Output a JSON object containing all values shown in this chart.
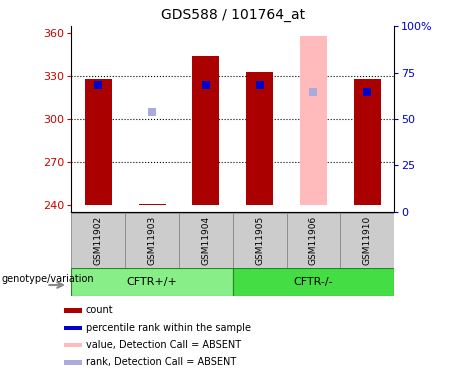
{
  "title": "GDS588 / 101764_at",
  "samples": [
    "GSM11902",
    "GSM11903",
    "GSM11904",
    "GSM11905",
    "GSM11906",
    "GSM11910"
  ],
  "ylim_left": [
    235,
    365
  ],
  "yticks_left": [
    240,
    270,
    300,
    330,
    360
  ],
  "yticks_right": [
    0,
    25,
    50,
    75,
    100
  ],
  "bar_bottom": 240,
  "bar_color": "#aa0000",
  "bar_color_absent": "#ffbbbb",
  "rank_color": "#0000cc",
  "rank_color_absent": "#aaaadd",
  "bar_width": 0.5,
  "rank_dot_size": 30,
  "counts": [
    328,
    null,
    344,
    333,
    null,
    328
  ],
  "counts_absent": [
    null,
    null,
    null,
    null,
    358,
    null
  ],
  "rank_values": [
    67,
    null,
    67,
    67,
    null,
    63
  ],
  "rank_absent": [
    null,
    52,
    null,
    null,
    63,
    null
  ],
  "gsm11903_tiny": true,
  "legend_items": [
    {
      "label": "count",
      "color": "#aa0000"
    },
    {
      "label": "percentile rank within the sample",
      "color": "#0000cc"
    },
    {
      "label": "value, Detection Call = ABSENT",
      "color": "#ffbbbb"
    },
    {
      "label": "rank, Detection Call = ABSENT",
      "color": "#aaaadd"
    }
  ],
  "label_color_left": "#cc0000",
  "label_color_right": "#0000cc",
  "genotype_label": "genotype/variation",
  "cftr_plus_color": "#88ee88",
  "cftr_minus_color": "#44dd44",
  "sample_box_color": "#cccccc",
  "sample_box_edge": "#888888"
}
